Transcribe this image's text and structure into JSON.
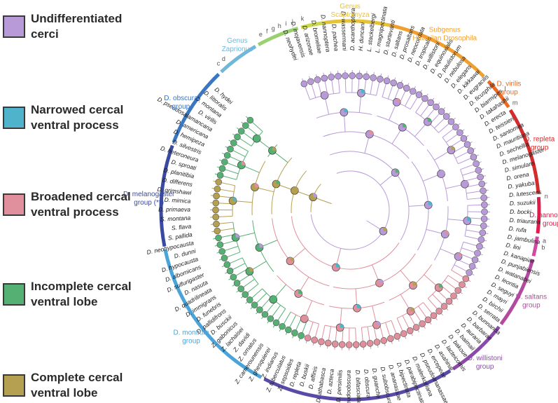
{
  "legend": [
    {
      "line1": "Undifferentiated",
      "line2": "cerci",
      "color": "#b99ad9"
    },
    {
      "line1": "Narrowed cercal",
      "line2": "ventral process",
      "color": "#4fb3cc"
    },
    {
      "line1": "Broadened cercal",
      "line2": "ventral process",
      "color": "#e0909c"
    },
    {
      "line1": "Incomplete cercal",
      "line2": "ventral lobe",
      "color": "#55b173"
    },
    {
      "line1": "Complete cercal",
      "line2": "ventral lobe",
      "color": "#b5a052"
    }
  ],
  "taxa": [
    "D. neohydei",
    "D. mojavensis",
    "D. arizonae",
    "D. bromeliae",
    "D. nannoptera",
    "D. pachea",
    "D. wassermani",
    "D. acanthoptera",
    "H. duncani",
    "L. stackelbergi",
    "L. magnipectinata",
    "D. sturtevanti",
    "D. saltans",
    "D. prosaltans",
    "D. neocordata",
    "D. tropicalis",
    "D. willistoni",
    "D. equinoxialis",
    "D. paulistorum",
    "D. nebulosa",
    "D. elegans",
    "D. kikkawai",
    "D. eugracilis",
    "D. ficusphila",
    "D. biarmipes",
    "D. takahashii",
    "D. erecta",
    "D. teissieri",
    "D. santomea",
    "D. mauritiana",
    "D. sechellia",
    "D. melanogaster",
    "D. simulans",
    "D. orena",
    "D. yakuba",
    "D. lutescens",
    "D. suzukii",
    "D. bocki",
    "D. triauraria",
    "D. rufa",
    "D. jambulina",
    "D. lini",
    "D. kanapiae",
    "D. punjabiensis",
    "D. watanabei",
    "D. leontia",
    "D. seguyi",
    "D. mayri",
    "D. birchii",
    "D. serrata",
    "D. bunnanda",
    "D. barbarae",
    "D. auraria",
    "D. baimaii",
    "D. bakoue",
    "D. lacteicornis",
    "D. asahinai",
    "D. ercepeae",
    "D. pseudoananassae",
    "D. malerkotliana",
    "D. parabipectinata",
    "D. bipectinata",
    "D. ananassae",
    "D. subobscura",
    "D. guanche",
    "D. obscura",
    "D. bifasciata",
    "D. pseudoobscura",
    "D. persimilis",
    "D. azteca",
    "D. athabasca",
    "D. affinis",
    "D. buskii",
    "D. repleta",
    "Z. sepsoides",
    "Z. tuberculatus",
    "Z. indianus",
    "Z. ghesquierei",
    "Z. camerounensis",
    "Z. ornatus",
    "Z. davidi",
    "Z. lachaisei",
    "Z. gabonicus",
    "D. busckii",
    "D. pallidifrons",
    "D. funebris",
    "D. immigrans",
    "D. quadrilineata",
    "D. nasuta",
    "D. sulfurigaster",
    "D. albomicans",
    "D. hypocausta",
    "D. dunni",
    "D. neohypocausta",
    "S. pallida",
    "S. flava",
    "S. montana",
    "D. primaeva",
    "D. mimica",
    "D. grimshawi",
    "D. differens",
    "D. planitibia",
    "D. sproati",
    "D. heteroneura",
    "D. silvestris",
    "D. hemipeza",
    "D. americana",
    "D. pseudosalamancana",
    "D. virilis",
    "D. montana",
    "D. littoralis",
    "D. hydei"
  ],
  "clades": [
    {
      "label": "Undifferentiated cerci group",
      "text": "Genus Scaptomyza",
      "color": "#e6c235"
    },
    {
      "label": "Subgenus Hawaiian Drosophila",
      "text": "Subgenus Hawaiian Drosophila",
      "color": "#f0a030"
    },
    {
      "label": "virilis",
      "text": "D. virilis group",
      "color": "#ec6a22"
    },
    {
      "label": "repleta",
      "text": "D. repleta group",
      "color": "#d22c2c"
    },
    {
      "label": "nannoptera",
      "text": "D. nannoptera group",
      "color": "#e01a4a"
    },
    {
      "label": "saltans",
      "text": "D. saltans group",
      "color": "#b34a9f"
    },
    {
      "label": "willistoni",
      "text": "D. willistoni group",
      "color": "#8b4aa8"
    },
    {
      "label": "melanogaster1",
      "text": "D. melanogaster group (*)",
      "color": "#5a4aa8"
    },
    {
      "label": "montium",
      "text": "D. montium group",
      "color": "#4aa3d9"
    },
    {
      "label": "melanogaster2",
      "text": "D. melanogaster group (**)",
      "color": "#3a4aa0"
    },
    {
      "label": "obscura",
      "text": "D. obscura group",
      "color": "#3a76c2"
    },
    {
      "label": "zaprionus",
      "text": "Genus Zaprionus",
      "color": "#6fb8d9"
    }
  ],
  "group_labels": {
    "scaptomyza": "Genus\nScaptomyza",
    "hawaiian": "Subgenus\nHawaiian Drosophila",
    "virilis": "D. virilis\ngroup",
    "repleta": "D. repleta\ngroup",
    "nannoptera": "D. nannoptera\ngroup",
    "saltans": "D. saltans\ngroup",
    "willistoni": "D. willistoni\ngroup",
    "melanogaster_a": "D. melanogaster\ngroup (*)",
    "montium": "D. montium\ngroup",
    "melanogaster_b": "D. melanogaster\ngroup (**)",
    "obscura": "D. obscura\ngroup",
    "zaprionus": "Genus\nZaprionus"
  },
  "letters": [
    "a",
    "b",
    "c",
    "d",
    "e",
    "f",
    "g",
    "h",
    "i",
    "j",
    "k",
    "l",
    "m",
    "n"
  ]
}
